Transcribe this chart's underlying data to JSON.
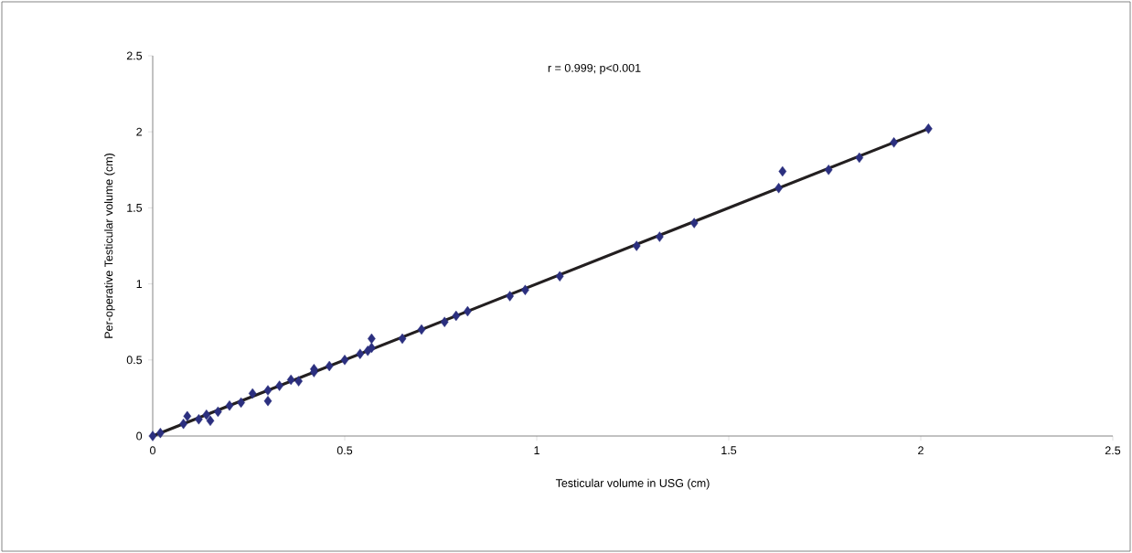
{
  "chart_data": {
    "type": "scatter",
    "xlabel": "Testicular volume in USG (cm)",
    "ylabel": "Per-operative Testicular volume (cm)",
    "annotations": [
      "r = 0.999; p<0.001"
    ],
    "xlim": [
      0,
      2.5
    ],
    "ylim": [
      0,
      2.5
    ],
    "xticks": [
      0,
      0.5,
      1,
      1.5,
      2,
      2.5
    ],
    "yticks": [
      0,
      0.5,
      1,
      1.5,
      2,
      2.5
    ],
    "grid": false,
    "marker": "diamond",
    "series": [
      {
        "color": "#2b2f7f",
        "x": [
          0,
          0.02,
          0.08,
          0.09,
          0.12,
          0.14,
          0.15,
          0.17,
          0.2,
          0.23,
          0.26,
          0.3,
          0.3,
          0.33,
          0.36,
          0.38,
          0.42,
          0.42,
          0.46,
          0.5,
          0.54,
          0.56,
          0.57,
          0.57,
          0.65,
          0.7,
          0.76,
          0.79,
          0.82,
          0.93,
          0.97,
          1.06,
          1.26,
          1.32,
          1.41,
          1.63,
          1.64,
          1.76,
          1.84,
          1.93,
          2.02
        ],
        "values": [
          0,
          0.02,
          0.08,
          0.13,
          0.11,
          0.14,
          0.1,
          0.16,
          0.2,
          0.22,
          0.28,
          0.23,
          0.3,
          0.33,
          0.37,
          0.36,
          0.44,
          0.42,
          0.46,
          0.5,
          0.54,
          0.56,
          0.64,
          0.58,
          0.64,
          0.7,
          0.75,
          0.79,
          0.82,
          0.92,
          0.96,
          1.05,
          1.25,
          1.31,
          1.4,
          1.63,
          1.74,
          1.75,
          1.83,
          1.93,
          2.02
        ]
      },
      {
        "type": "line",
        "color": "#231f20",
        "marker": "none",
        "x": [
          0,
          2.02
        ],
        "values": [
          0,
          2.02
        ]
      }
    ]
  }
}
